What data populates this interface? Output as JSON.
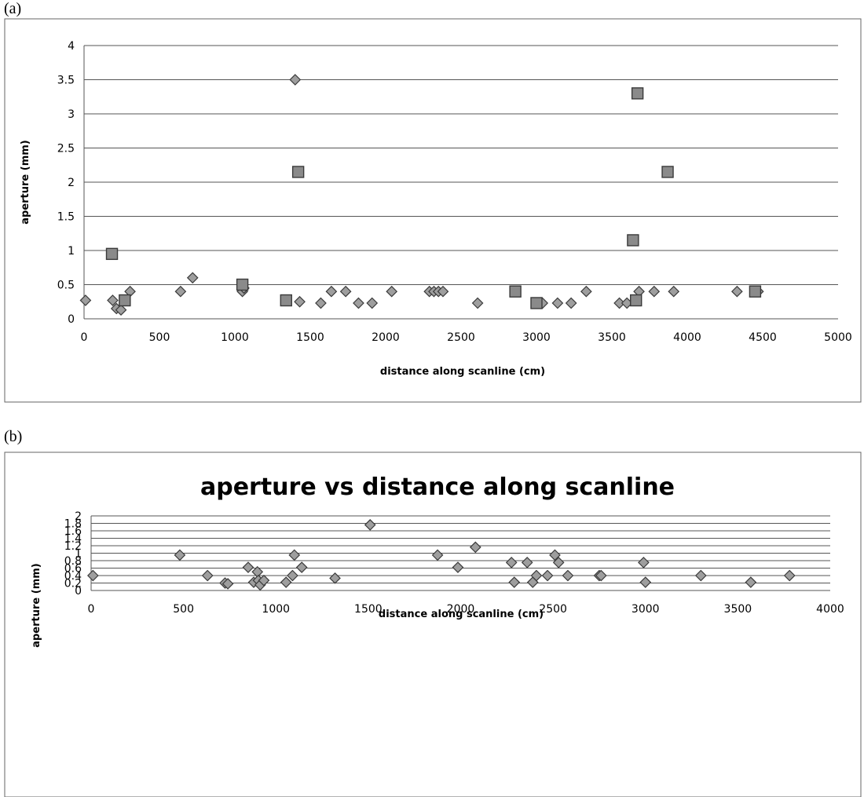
{
  "panels": {
    "a_label": "(a)",
    "b_label": "(b)"
  },
  "chart_data": [
    {
      "type": "scatter",
      "title": "",
      "xlabel": "distance along scanline (cm)",
      "ylabel": "aperture (mm)",
      "xlim": [
        0,
        5000
      ],
      "ylim": [
        0,
        4
      ],
      "xticks": [
        "0",
        "500",
        "1000",
        "1500",
        "2000",
        "2500",
        "3000",
        "3500",
        "4000",
        "4500",
        "5000"
      ],
      "yticks": [
        "0",
        "0.5",
        "1",
        "1.5",
        "2",
        "2.5",
        "3",
        "3.5",
        "4"
      ],
      "grid": true,
      "series": [
        {
          "marker": "diamond",
          "color": "#9e9e9e",
          "points": [
            [
              10,
              0.27
            ],
            [
              190,
              0.27
            ],
            [
              215,
              0.15
            ],
            [
              245,
              0.13
            ],
            [
              305,
              0.4
            ],
            [
              640,
              0.4
            ],
            [
              720,
              0.6
            ],
            [
              1050,
              0.4
            ],
            [
              1060,
              0.45
            ],
            [
              1400,
              3.5
            ],
            [
              1430,
              0.25
            ],
            [
              1570,
              0.23
            ],
            [
              1640,
              0.4
            ],
            [
              1735,
              0.4
            ],
            [
              1820,
              0.23
            ],
            [
              1910,
              0.23
            ],
            [
              2040,
              0.4
            ],
            [
              2290,
              0.4
            ],
            [
              2320,
              0.4
            ],
            [
              2350,
              0.4
            ],
            [
              2380,
              0.4
            ],
            [
              2610,
              0.23
            ],
            [
              3040,
              0.23
            ],
            [
              3140,
              0.23
            ],
            [
              3230,
              0.23
            ],
            [
              3330,
              0.4
            ],
            [
              3550,
              0.23
            ],
            [
              3600,
              0.23
            ],
            [
              3680,
              0.4
            ],
            [
              3780,
              0.4
            ],
            [
              3910,
              0.4
            ],
            [
              4330,
              0.4
            ],
            [
              4470,
              0.4
            ]
          ]
        },
        {
          "marker": "square",
          "color": "#8a8a8a",
          "points": [
            [
              185,
              0.95
            ],
            [
              270,
              0.27
            ],
            [
              1050,
              0.5
            ],
            [
              1340,
              0.27
            ],
            [
              1420,
              2.15
            ],
            [
              2860,
              0.4
            ],
            [
              3000,
              0.23
            ],
            [
              3640,
              1.15
            ],
            [
              3660,
              0.27
            ],
            [
              3670,
              3.3
            ],
            [
              3870,
              2.15
            ],
            [
              4450,
              0.4
            ]
          ]
        }
      ]
    },
    {
      "type": "scatter",
      "title": "aperture vs distance along scanline",
      "xlabel": "distance along scanline (cm)",
      "ylabel": "aperture (mm)",
      "xlim": [
        0,
        4000
      ],
      "ylim": [
        0,
        2
      ],
      "xticks": [
        "0",
        "500",
        "1000",
        "1500",
        "2000",
        "2500",
        "3000",
        "3500",
        "4000"
      ],
      "yticks": [
        "0",
        "0.2",
        "0.4",
        "0.6",
        "0.8",
        "1",
        "1.2",
        "1.4",
        "1.6",
        "1.8",
        "2"
      ],
      "grid": true,
      "series": [
        {
          "marker": "diamond",
          "color": "#9e9e9e",
          "points": [
            [
              10,
              0.4
            ],
            [
              480,
              0.95
            ],
            [
              630,
              0.4
            ],
            [
              725,
              0.2
            ],
            [
              740,
              0.18
            ],
            [
              850,
              0.62
            ],
            [
              880,
              0.22
            ],
            [
              900,
              0.5
            ],
            [
              905,
              0.27
            ],
            [
              915,
              0.15
            ],
            [
              935,
              0.27
            ],
            [
              1055,
              0.22
            ],
            [
              1090,
              0.4
            ],
            [
              1100,
              0.95
            ],
            [
              1140,
              0.62
            ],
            [
              1320,
              0.33
            ],
            [
              1510,
              1.76
            ],
            [
              1875,
              0.95
            ],
            [
              1985,
              0.62
            ],
            [
              2080,
              1.16
            ],
            [
              2275,
              0.75
            ],
            [
              2290,
              0.22
            ],
            [
              2360,
              0.75
            ],
            [
              2390,
              0.22
            ],
            [
              2410,
              0.4
            ],
            [
              2470,
              0.4
            ],
            [
              2510,
              0.95
            ],
            [
              2530,
              0.75
            ],
            [
              2580,
              0.4
            ],
            [
              2750,
              0.4
            ],
            [
              2760,
              0.4
            ],
            [
              2990,
              0.75
            ],
            [
              3000,
              0.22
            ],
            [
              3300,
              0.4
            ],
            [
              3570,
              0.22
            ],
            [
              3780,
              0.4
            ]
          ]
        }
      ]
    }
  ]
}
